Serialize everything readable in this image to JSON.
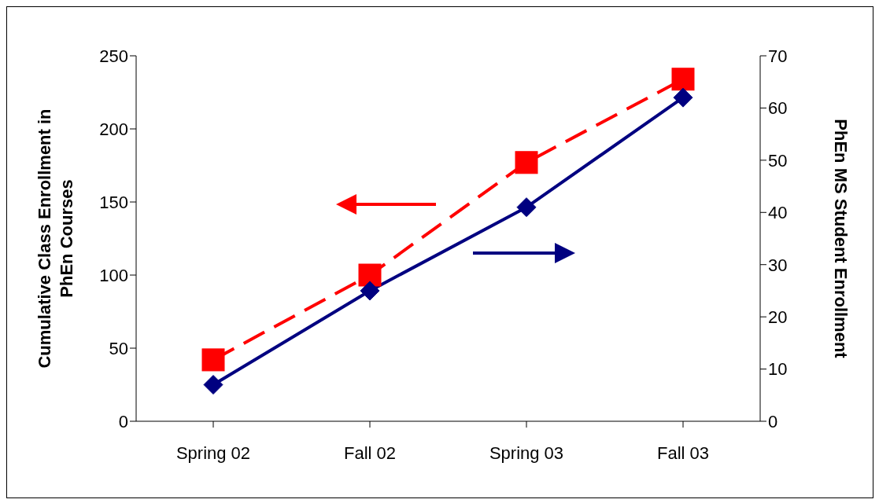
{
  "chart_data": {
    "type": "line",
    "categories": [
      "Spring 02",
      "Fall 02",
      "Spring 03",
      "Fall 03"
    ],
    "ylabel": "Cumulative Class Enrollment in PhEn Courses",
    "y2label": "PhEn MS Student Enrollment",
    "ylim": [
      0,
      250
    ],
    "yticks": [
      0,
      50,
      100,
      150,
      200,
      250
    ],
    "y2lim": [
      0,
      70
    ],
    "y2ticks": [
      0,
      10,
      20,
      30,
      40,
      50,
      60,
      70
    ],
    "grid": false,
    "series": [
      {
        "color": "#ff0000",
        "values": [
          42,
          100,
          177,
          234
        ],
        "marker": "square",
        "line_style": "dashed"
      },
      {
        "color": "#000080",
        "values": [
          7,
          25,
          41,
          62
        ],
        "axis": "y2",
        "marker": "diamond",
        "line_style": "solid"
      }
    ]
  }
}
